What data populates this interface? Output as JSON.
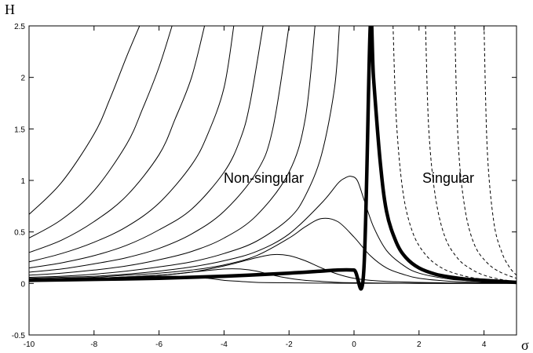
{
  "chart_data": {
    "type": "line",
    "title": "",
    "xlabel": "σ",
    "ylabel": "H",
    "xlim": [
      -10,
      5
    ],
    "ylim": [
      -0.5,
      2.5
    ],
    "grid": false,
    "xticks": [
      -10,
      -8,
      -6,
      -4,
      -2,
      0,
      2,
      4
    ],
    "yticks": [
      -0.5,
      0,
      0.5,
      1,
      1.5,
      2,
      2.5
    ],
    "annotations": [
      {
        "text": "Non-singular",
        "x": -2.1,
        "y": 1.0
      },
      {
        "text": "Singular",
        "x": 2.7,
        "y": 1.0
      }
    ],
    "series": [
      {
        "style": "solid",
        "x": [
          -10,
          -9,
          -8,
          -7.5,
          -7,
          -6.6
        ],
        "y": [
          0.67,
          0.98,
          1.45,
          1.8,
          2.2,
          2.5
        ]
      },
      {
        "style": "solid",
        "x": [
          -10,
          -9,
          -8,
          -7,
          -6.5,
          -6,
          -5.6
        ],
        "y": [
          0.44,
          0.62,
          0.9,
          1.35,
          1.7,
          2.1,
          2.5
        ]
      },
      {
        "style": "solid",
        "x": [
          -10,
          -9,
          -8,
          -7,
          -6,
          -5.5,
          -5,
          -4.6
        ],
        "y": [
          0.3,
          0.42,
          0.6,
          0.85,
          1.25,
          1.6,
          2.0,
          2.5
        ]
      },
      {
        "style": "solid",
        "x": [
          -10,
          -9,
          -8,
          -7,
          -6,
          -5,
          -4.5,
          -4,
          -3.7
        ],
        "y": [
          0.21,
          0.29,
          0.4,
          0.55,
          0.78,
          1.15,
          1.45,
          1.9,
          2.5
        ]
      },
      {
        "style": "solid",
        "x": [
          -10,
          -9,
          -8,
          -7,
          -6,
          -5,
          -4,
          -3.5,
          -3.2,
          -2.8
        ],
        "y": [
          0.15,
          0.2,
          0.27,
          0.37,
          0.52,
          0.72,
          1.08,
          1.4,
          1.75,
          2.5
        ]
      },
      {
        "style": "solid",
        "x": [
          -10,
          -9,
          -8,
          -7,
          -6,
          -5,
          -4,
          -3,
          -2.5,
          -2.0
        ],
        "y": [
          0.11,
          0.14,
          0.19,
          0.25,
          0.34,
          0.48,
          0.7,
          1.08,
          1.5,
          2.5
        ]
      },
      {
        "style": "solid",
        "x": [
          -10,
          -9,
          -8,
          -7,
          -6,
          -5,
          -4,
          -3,
          -2,
          -1.5,
          -1.2
        ],
        "y": [
          0.08,
          0.1,
          0.13,
          0.17,
          0.23,
          0.31,
          0.44,
          0.66,
          1.08,
          1.6,
          2.5
        ]
      },
      {
        "style": "solid",
        "x": [
          -10,
          -9,
          -8,
          -7,
          -6,
          -5,
          -4,
          -3,
          -2,
          -1.5,
          -1,
          -0.6,
          -0.45
        ],
        "y": [
          0.06,
          0.07,
          0.09,
          0.12,
          0.16,
          0.21,
          0.29,
          0.41,
          0.63,
          0.85,
          1.25,
          1.9,
          2.5
        ]
      },
      {
        "style": "solid",
        "x": [
          -10,
          -9,
          -8,
          -7,
          -6,
          -5,
          -4,
          -3,
          -2,
          -1,
          -0.5,
          -0.3,
          -0.1,
          0.1,
          0.3,
          0.6,
          1,
          1.5,
          2,
          3,
          4,
          5
        ],
        "y": [
          0.05,
          0.06,
          0.07,
          0.09,
          0.12,
          0.16,
          0.22,
          0.31,
          0.48,
          0.78,
          0.97,
          1.02,
          1.04,
          1.0,
          0.82,
          0.55,
          0.32,
          0.18,
          0.1,
          0.04,
          0.02,
          0.01
        ]
      },
      {
        "style": "solid",
        "x": [
          -10,
          -9,
          -8,
          -7,
          -6,
          -5,
          -4,
          -3,
          -2,
          -1.5,
          -1,
          -0.5,
          0,
          0.5,
          1,
          1.5,
          2,
          3,
          4,
          5
        ],
        "y": [
          0.04,
          0.05,
          0.06,
          0.08,
          0.1,
          0.13,
          0.18,
          0.27,
          0.44,
          0.55,
          0.63,
          0.6,
          0.45,
          0.27,
          0.15,
          0.09,
          0.05,
          0.02,
          0.01,
          0.005
        ]
      },
      {
        "style": "solid",
        "x": [
          -10,
          -8,
          -6,
          -5,
          -4,
          -3,
          -2.5,
          -2,
          -1.5,
          -1,
          -0.5,
          0,
          0.5,
          1,
          2,
          3,
          4,
          5
        ],
        "y": [
          0.03,
          0.05,
          0.08,
          0.11,
          0.17,
          0.25,
          0.28,
          0.27,
          0.22,
          0.15,
          0.09,
          0.05,
          0.03,
          0.02,
          0.01,
          0.005,
          0.003,
          0.002
        ]
      },
      {
        "style": "solid",
        "x": [
          -10,
          -8,
          -6,
          -5,
          -4,
          -3.5,
          -3,
          -2.5,
          -2,
          -1.5,
          -1,
          -0.5,
          0,
          1,
          2,
          3,
          4,
          5
        ],
        "y": [
          0.03,
          0.05,
          0.08,
          0.11,
          0.14,
          0.14,
          0.12,
          0.08,
          0.05,
          0.03,
          0.02,
          0.01,
          0.007,
          0.003,
          0.002,
          0.001,
          0.001,
          0.001
        ]
      },
      {
        "style": "solid",
        "x": [
          -10,
          -8,
          -7,
          -6,
          -5.5,
          -5,
          -4.5,
          -4,
          -3.5,
          -3,
          -2,
          -1,
          0,
          2,
          5
        ],
        "y": [
          0.03,
          0.05,
          0.06,
          0.07,
          0.07,
          0.06,
          0.05,
          0.03,
          0.02,
          0.01,
          0.006,
          0.003,
          0.002,
          0.001,
          0.001
        ]
      },
      {
        "style": "thick",
        "x": [
          -10,
          -8,
          -6,
          -4,
          -2,
          -1,
          -0.5,
          0,
          0.3,
          0.5,
          0.6,
          0.8,
          1.0,
          1.3,
          1.6,
          2,
          2.5,
          3,
          3.5,
          4,
          5
        ],
        "y": [
          0.03,
          0.04,
          0.05,
          0.07,
          0.1,
          0.12,
          0.13,
          0.13,
          0.12,
          2.5,
          2.0,
          1.2,
          0.7,
          0.4,
          0.25,
          0.15,
          0.09,
          0.06,
          0.04,
          0.03,
          0.01
        ]
      },
      {
        "style": "dashed",
        "x": [
          1.2,
          1.3,
          1.5,
          1.8,
          2.2,
          2.7,
          3.3,
          4,
          5
        ],
        "y": [
          2.5,
          1.6,
          0.9,
          0.5,
          0.28,
          0.15,
          0.08,
          0.04,
          0.02
        ]
      },
      {
        "style": "dashed",
        "x": [
          2.2,
          2.3,
          2.5,
          2.8,
          3.2,
          3.6,
          4,
          4.5,
          5
        ],
        "y": [
          2.5,
          1.5,
          0.85,
          0.45,
          0.24,
          0.14,
          0.08,
          0.04,
          0.02
        ]
      },
      {
        "style": "dashed",
        "x": [
          3.1,
          3.2,
          3.4,
          3.7,
          4.1,
          4.5,
          5
        ],
        "y": [
          2.5,
          1.4,
          0.75,
          0.38,
          0.2,
          0.11,
          0.05
        ]
      },
      {
        "style": "dashed",
        "x": [
          4.0,
          4.1,
          4.3,
          4.55,
          4.8,
          5
        ],
        "y": [
          2.5,
          1.3,
          0.6,
          0.3,
          0.15,
          0.08
        ]
      }
    ]
  }
}
